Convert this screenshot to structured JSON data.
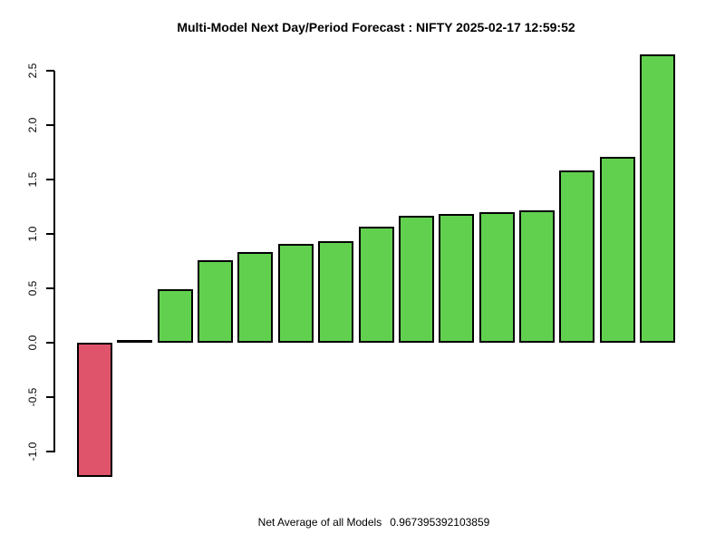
{
  "title": "Multi-Model Next Day/Period Forecast : NIFTY 2025-02-17 12:59:52",
  "footer": {
    "label": "Net Average of all Models",
    "value": "0.967395392103859"
  },
  "colors": {
    "positive_bar": "#61D04F",
    "negative_bar": "#DF536B",
    "zero_bar": "#000000",
    "axis": "#000000",
    "background": "#ffffff"
  },
  "chart_data": {
    "type": "bar",
    "title": "Multi-Model Next Day/Period Forecast : NIFTY 2025-02-17 12:59:52",
    "xlabel": "",
    "ylabel": "",
    "values": [
      -1.23,
      0.0,
      0.49,
      0.76,
      0.83,
      0.91,
      0.93,
      1.07,
      1.17,
      1.18,
      1.2,
      1.22,
      1.58,
      1.71,
      2.65
    ],
    "bar_colors": [
      "#DF536B",
      "#000000",
      "#61D04F",
      "#61D04F",
      "#61D04F",
      "#61D04F",
      "#61D04F",
      "#61D04F",
      "#61D04F",
      "#61D04F",
      "#61D04F",
      "#61D04F",
      "#61D04F",
      "#61D04F",
      "#61D04F"
    ],
    "bar_edge_color": "#000000",
    "yticks": [
      -1.0,
      -0.5,
      0.0,
      0.5,
      1.0,
      1.5,
      2.0,
      2.5
    ],
    "ytick_labels": [
      "-1.0",
      "-0.5",
      "0.0",
      "0.5",
      "1.0",
      "1.5",
      "2.0",
      "2.5"
    ],
    "ylim": [
      -1.23,
      2.65
    ],
    "grid": false,
    "legend": "none",
    "footer_annotation": "Net Average of all Models  0.967395392103859"
  }
}
